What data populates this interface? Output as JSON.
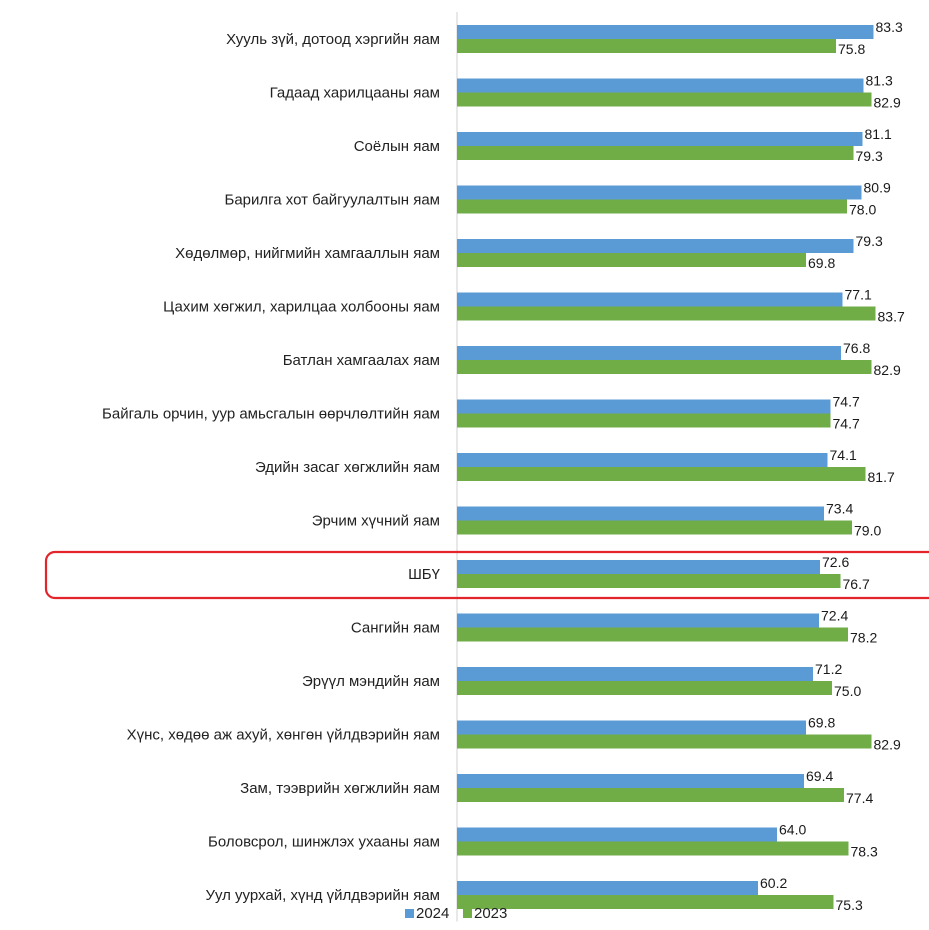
{
  "colors": {
    "series_2024": "#5b9bd5",
    "series_2023": "#70ad47",
    "axis": "#d0d0d0",
    "highlight": "#e3242b"
  },
  "chart_data": {
    "type": "bar",
    "orientation": "horizontal",
    "title": "",
    "xlabel": "",
    "ylabel": "",
    "grid": false,
    "legend_position": "bottom",
    "highlighted_category": "ШБҮ",
    "categories": [
      "Хууль зүй, дотоод хэргийн яам",
      "Гадаад харилцааны яам",
      "Соёлын яам",
      "Барилга хот байгуулалтын яам",
      "Хөдөлмөр, нийгмийн хамгааллын яам",
      "Цахим хөгжил, харилцаа холбооны яам",
      "Батлан хамгаалах яам",
      "Байгаль орчин, уур амьсгалын өөрчлөлтийн яам",
      "Эдийн засаг хөгжлийн яам",
      "Эрчим хүчний яам",
      "ШБҮ",
      "Сангийн яам",
      "Эрүүл мэндийн яам",
      "Хүнс, хөдөө аж ахуй, хөнгөн үйлдвэрийн яам",
      "Зам, тээврийн хөгжлийн яам",
      "Боловсрол, шинжлэх ухааны яам",
      "Уул уурхай, хүнд үйлдвэрийн яам"
    ],
    "series": [
      {
        "name": "2024",
        "values": [
          83.3,
          81.3,
          81.1,
          80.9,
          79.3,
          77.1,
          76.8,
          74.7,
          74.1,
          73.4,
          72.6,
          72.4,
          71.2,
          69.8,
          69.4,
          64.0,
          60.2
        ]
      },
      {
        "name": "2023",
        "values": [
          75.8,
          82.9,
          79.3,
          78.0,
          69.8,
          83.7,
          82.9,
          74.7,
          81.7,
          79.0,
          76.7,
          78.2,
          75.0,
          82.9,
          77.4,
          78.3,
          75.3
        ]
      }
    ]
  }
}
